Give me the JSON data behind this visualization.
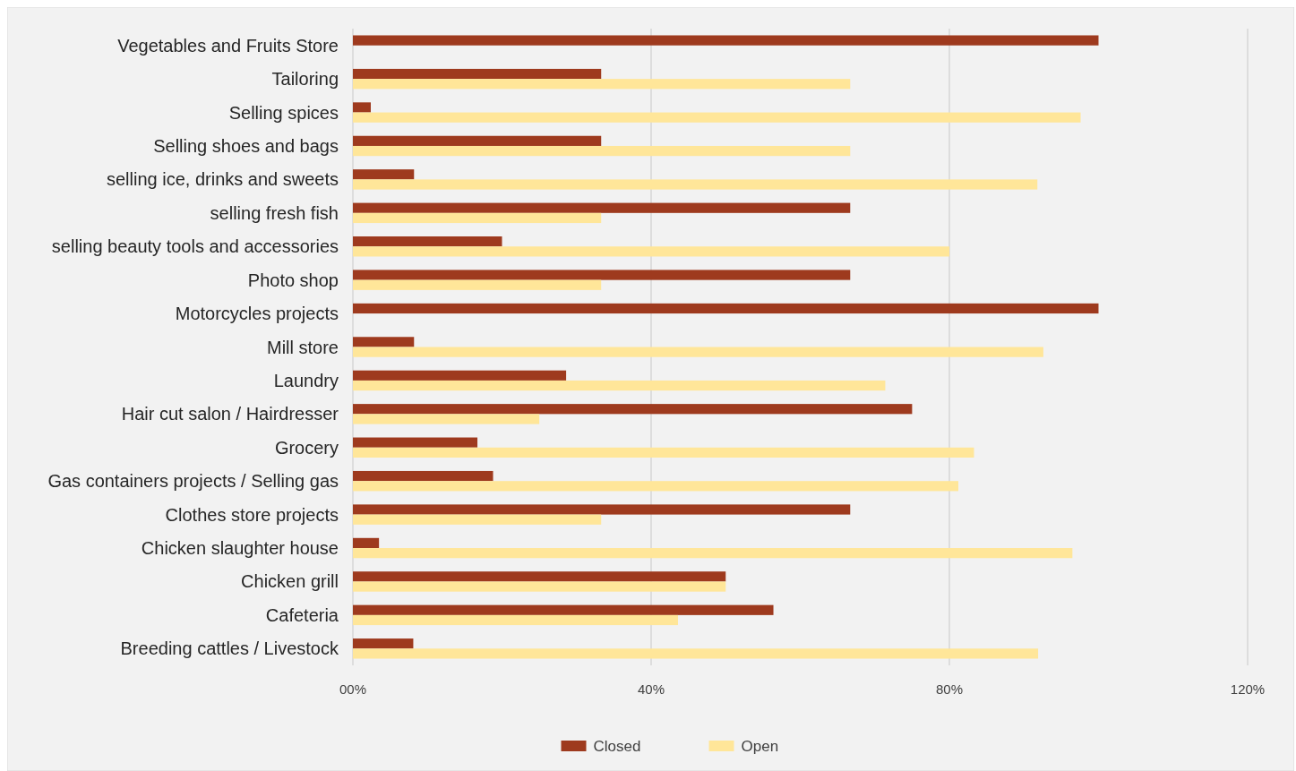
{
  "chart_data": {
    "type": "bar",
    "orientation": "horizontal",
    "categories": [
      "Vegetables and Fruits Store",
      "Tailoring",
      "Selling spices",
      "Selling shoes and bags",
      "selling ice, drinks and sweets",
      "selling fresh fish",
      "selling beauty tools and accessories",
      "Photo shop",
      "Motorcycles projects",
      "Mill store",
      "Laundry",
      "Hair cut salon / Hairdresser",
      "Grocery",
      "Gas containers projects / Selling gas",
      "Clothes store projects",
      "Chicken slaughter house",
      "Chicken grill",
      "Cafeteria",
      "Breeding cattles / Livestock"
    ],
    "series": [
      {
        "name": "Closed",
        "color": "#9e3a1e",
        "values": [
          100,
          33.3,
          2.4,
          33.3,
          8.2,
          66.7,
          20,
          66.7,
          100,
          8.2,
          28.6,
          75,
          16.7,
          18.8,
          66.7,
          3.5,
          50,
          56.4,
          8.1
        ]
      },
      {
        "name": "Open",
        "color": "#ffe699",
        "values": [
          0,
          66.7,
          97.6,
          66.7,
          91.8,
          33.3,
          80,
          33.3,
          0,
          92.6,
          71.4,
          25,
          83.3,
          81.2,
          33.3,
          96.5,
          50,
          43.6,
          91.9
        ]
      }
    ],
    "xlim": [
      0,
      120
    ],
    "xticks": [
      {
        "value": 0,
        "label": "00%"
      },
      {
        "value": 40,
        "label": "40%"
      },
      {
        "value": 80,
        "label": "80%"
      },
      {
        "value": 120,
        "label": "120%"
      }
    ],
    "grid": "x",
    "legend": "bottom"
  }
}
